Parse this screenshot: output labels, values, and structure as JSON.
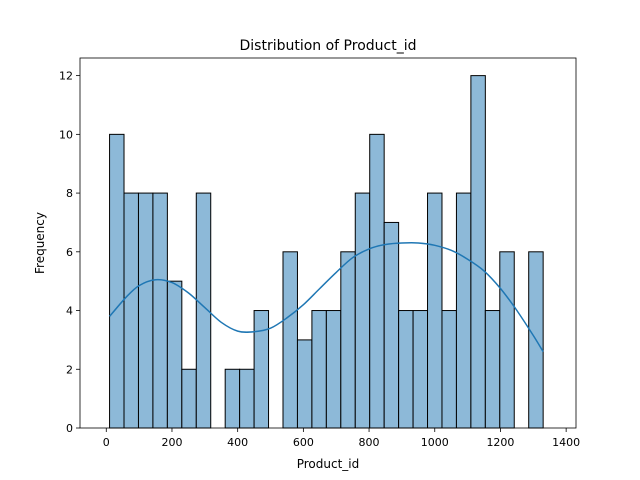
{
  "chart_data": {
    "type": "bar",
    "title": "Distribution of Product_id",
    "xlabel": "Product_id",
    "ylabel": "Frequency",
    "xlim": [
      -80,
      1430
    ],
    "ylim": [
      0,
      12.6
    ],
    "xticks": [
      0,
      200,
      400,
      600,
      800,
      1000,
      1200,
      1400
    ],
    "yticks": [
      0,
      2,
      4,
      6,
      8,
      10,
      12
    ],
    "grid": false,
    "bar_color": "#8db9d8",
    "bar_edge_color": "#000000",
    "kde_color": "#1f77b4",
    "bins": [
      {
        "x0": 10,
        "x1": 54,
        "count": 10
      },
      {
        "x0": 54,
        "x1": 98,
        "count": 8
      },
      {
        "x0": 98,
        "x1": 142,
        "count": 8
      },
      {
        "x0": 142,
        "x1": 186,
        "count": 8
      },
      {
        "x0": 186,
        "x1": 230,
        "count": 5
      },
      {
        "x0": 230,
        "x1": 274,
        "count": 2
      },
      {
        "x0": 274,
        "x1": 318,
        "count": 8
      },
      {
        "x0": 318,
        "x1": 362,
        "count": 0
      },
      {
        "x0": 362,
        "x1": 406,
        "count": 2
      },
      {
        "x0": 406,
        "x1": 450,
        "count": 2
      },
      {
        "x0": 450,
        "x1": 494,
        "count": 4
      },
      {
        "x0": 494,
        "x1": 538,
        "count": 0
      },
      {
        "x0": 538,
        "x1": 582,
        "count": 6
      },
      {
        "x0": 582,
        "x1": 626,
        "count": 3
      },
      {
        "x0": 626,
        "x1": 670,
        "count": 4
      },
      {
        "x0": 670,
        "x1": 714,
        "count": 4
      },
      {
        "x0": 714,
        "x1": 758,
        "count": 6
      },
      {
        "x0": 758,
        "x1": 802,
        "count": 8
      },
      {
        "x0": 802,
        "x1": 846,
        "count": 10
      },
      {
        "x0": 846,
        "x1": 890,
        "count": 7
      },
      {
        "x0": 890,
        "x1": 934,
        "count": 4
      },
      {
        "x0": 934,
        "x1": 978,
        "count": 4
      },
      {
        "x0": 978,
        "x1": 1022,
        "count": 8
      },
      {
        "x0": 1022,
        "x1": 1066,
        "count": 4
      },
      {
        "x0": 1066,
        "x1": 1110,
        "count": 8
      },
      {
        "x0": 1110,
        "x1": 1154,
        "count": 12
      },
      {
        "x0": 1154,
        "x1": 1198,
        "count": 4
      },
      {
        "x0": 1198,
        "x1": 1242,
        "count": 6
      },
      {
        "x0": 1242,
        "x1": 1286,
        "count": 0
      },
      {
        "x0": 1286,
        "x1": 1330,
        "count": 6
      }
    ],
    "kde": {
      "x": [
        10,
        60,
        100,
        150,
        200,
        250,
        300,
        350,
        400,
        450,
        500,
        550,
        600,
        650,
        700,
        750,
        800,
        850,
        900,
        950,
        1000,
        1050,
        1100,
        1150,
        1200,
        1250,
        1300,
        1330
      ],
      "y": [
        3.8,
        4.45,
        4.85,
        5.05,
        4.95,
        4.6,
        4.1,
        3.6,
        3.3,
        3.28,
        3.4,
        3.75,
        4.2,
        4.75,
        5.3,
        5.8,
        6.1,
        6.25,
        6.3,
        6.3,
        6.22,
        6.05,
        5.75,
        5.35,
        4.75,
        4.0,
        3.15,
        2.6
      ]
    }
  }
}
